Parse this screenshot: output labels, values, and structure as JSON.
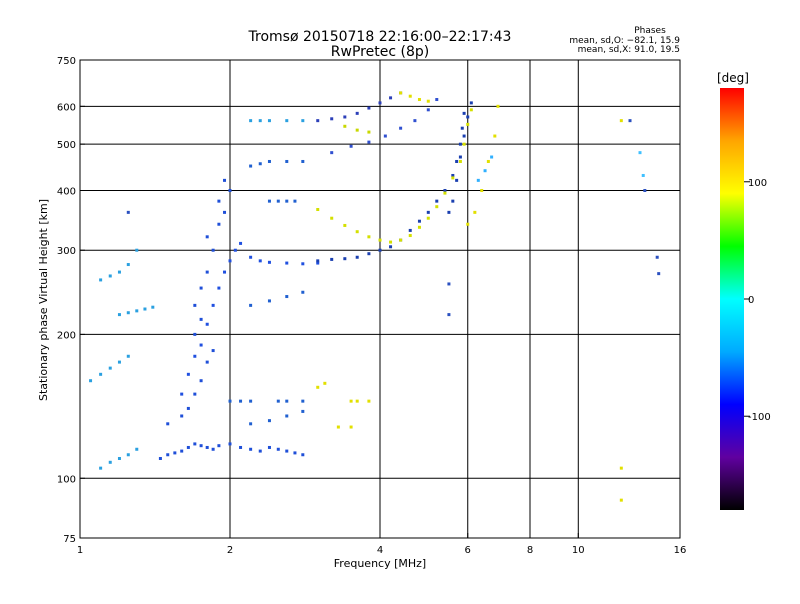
{
  "header": {
    "title_line1": "Tromsø 20150718 22:16:00–22:17:43",
    "title_line2": "RwPretec (8p)",
    "phases_title": "Phases",
    "phases_o": "mean, sd,O: −82.1, 15.9",
    "phases_x": "mean, sd,X:  91.0, 19.5"
  },
  "chart_data": {
    "type": "scatter",
    "xlabel": "Frequency [MHz]",
    "ylabel": "Stationary phase Virtual Height [km]",
    "x_scale": "log",
    "y_scale": "log",
    "xlim": [
      1,
      16
    ],
    "ylim": [
      75,
      750
    ],
    "x_ticks": [
      1,
      2,
      4,
      6,
      8,
      10,
      16
    ],
    "y_ticks": [
      75,
      100,
      200,
      300,
      400,
      500,
      600,
      750
    ],
    "grid_x": [
      2,
      4,
      6,
      8,
      10
    ],
    "grid_y": [
      100,
      200,
      300,
      400,
      500,
      600
    ],
    "colorbar": {
      "label": "[deg]",
      "range": [
        -180,
        180
      ],
      "ticks": [
        100,
        0,
        -100
      ],
      "colors": [
        "#ff0000",
        "#ffa500",
        "#ffff00",
        "#00ff00",
        "#00ffff",
        "#00aaff",
        "#0000ff",
        "#6000a0",
        "#000000"
      ]
    },
    "series": [
      {
        "color": "#1f4fd8",
        "points": [
          [
            1.45,
            110
          ],
          [
            1.5,
            112
          ],
          [
            1.55,
            113
          ],
          [
            1.6,
            114
          ],
          [
            1.65,
            116
          ],
          [
            1.7,
            118
          ],
          [
            1.75,
            117
          ],
          [
            1.8,
            116
          ],
          [
            1.85,
            115
          ],
          [
            1.9,
            117
          ],
          [
            2.0,
            118
          ],
          [
            2.1,
            116
          ],
          [
            2.2,
            115
          ],
          [
            2.3,
            114
          ],
          [
            2.4,
            116
          ],
          [
            2.5,
            115
          ],
          [
            2.6,
            114
          ],
          [
            2.7,
            113
          ],
          [
            2.8,
            112
          ]
        ]
      },
      {
        "color": "#1f4fd8",
        "points": [
          [
            1.5,
            130
          ],
          [
            1.6,
            135
          ],
          [
            1.65,
            140
          ],
          [
            1.7,
            150
          ],
          [
            1.75,
            160
          ],
          [
            1.8,
            175
          ],
          [
            1.85,
            185
          ],
          [
            1.7,
            200
          ],
          [
            1.75,
            215
          ],
          [
            1.7,
            230
          ],
          [
            1.75,
            250
          ],
          [
            1.8,
            270
          ],
          [
            1.85,
            300
          ],
          [
            1.8,
            320
          ],
          [
            1.9,
            340
          ],
          [
            1.95,
            360
          ],
          [
            1.9,
            380
          ],
          [
            2.0,
            400
          ],
          [
            1.95,
            420
          ]
        ]
      },
      {
        "color": "#2050e0",
        "points": [
          [
            1.6,
            150
          ],
          [
            1.65,
            165
          ],
          [
            1.7,
            180
          ],
          [
            1.75,
            190
          ],
          [
            1.8,
            210
          ],
          [
            1.85,
            230
          ],
          [
            1.9,
            250
          ],
          [
            1.95,
            270
          ],
          [
            2.0,
            285
          ],
          [
            2.05,
            300
          ],
          [
            2.1,
            310
          ],
          [
            2.2,
            290
          ],
          [
            2.3,
            285
          ],
          [
            2.4,
            283
          ],
          [
            2.6,
            282
          ],
          [
            2.8,
            281
          ],
          [
            3.0,
            282
          ]
        ]
      },
      {
        "color": "#1a3fb0",
        "points": [
          [
            3.0,
            285
          ],
          [
            3.2,
            287
          ],
          [
            3.4,
            288
          ],
          [
            3.6,
            290
          ],
          [
            3.8,
            295
          ],
          [
            4.0,
            300
          ],
          [
            4.2,
            305
          ],
          [
            4.4,
            315
          ],
          [
            4.6,
            330
          ],
          [
            4.8,
            345
          ],
          [
            5.0,
            360
          ],
          [
            5.2,
            380
          ],
          [
            5.4,
            400
          ],
          [
            5.6,
            430
          ],
          [
            5.7,
            460
          ],
          [
            5.8,
            500
          ],
          [
            5.85,
            540
          ],
          [
            5.9,
            580
          ]
        ]
      },
      {
        "color": "#2c3fb8",
        "points": [
          [
            3.0,
            560
          ],
          [
            3.2,
            565
          ],
          [
            3.4,
            570
          ],
          [
            3.6,
            580
          ],
          [
            3.8,
            595
          ],
          [
            4.0,
            610
          ],
          [
            4.2,
            625
          ],
          [
            4.4,
            640
          ]
        ]
      },
      {
        "color": "#3050d0",
        "points": [
          [
            3.2,
            480
          ],
          [
            3.5,
            495
          ],
          [
            3.8,
            505
          ],
          [
            4.1,
            520
          ],
          [
            4.4,
            540
          ],
          [
            4.7,
            560
          ],
          [
            5.0,
            590
          ],
          [
            5.2,
            620
          ]
        ]
      },
      {
        "color": "#d4e000",
        "points": [
          [
            3.0,
            365
          ],
          [
            3.2,
            350
          ],
          [
            3.4,
            338
          ],
          [
            3.6,
            328
          ],
          [
            3.8,
            320
          ],
          [
            4.0,
            315
          ],
          [
            4.2,
            312
          ],
          [
            4.4,
            315
          ],
          [
            4.6,
            322
          ],
          [
            4.8,
            335
          ],
          [
            5.0,
            350
          ],
          [
            5.2,
            370
          ],
          [
            5.4,
            395
          ],
          [
            5.6,
            425
          ],
          [
            5.8,
            460
          ],
          [
            5.9,
            500
          ],
          [
            6.0,
            550
          ],
          [
            6.1,
            590
          ]
        ]
      },
      {
        "color": "#c8d800",
        "points": [
          [
            3.4,
            545
          ],
          [
            3.6,
            535
          ],
          [
            3.8,
            530
          ]
        ]
      },
      {
        "color": "#e2e000",
        "points": [
          [
            4.4,
            640
          ],
          [
            4.6,
            630
          ],
          [
            4.8,
            620
          ],
          [
            5.0,
            615
          ]
        ]
      },
      {
        "color": "#2aa0e0",
        "points": [
          [
            1.1,
            105
          ],
          [
            1.15,
            108
          ],
          [
            1.2,
            110
          ],
          [
            1.25,
            112
          ],
          [
            1.3,
            115
          ]
        ]
      },
      {
        "color": "#2aa0e0",
        "points": [
          [
            1.05,
            160
          ],
          [
            1.1,
            165
          ],
          [
            1.15,
            170
          ],
          [
            1.2,
            175
          ],
          [
            1.25,
            180
          ]
        ]
      },
      {
        "color": "#2aa0e0",
        "points": [
          [
            1.1,
            260
          ],
          [
            1.15,
            265
          ],
          [
            1.2,
            270
          ],
          [
            1.25,
            280
          ],
          [
            1.3,
            300
          ]
        ]
      },
      {
        "color": "#2aa0e0",
        "points": [
          [
            1.2,
            220
          ],
          [
            1.25,
            222
          ],
          [
            1.3,
            224
          ],
          [
            1.35,
            226
          ],
          [
            1.4,
            228
          ]
        ]
      },
      {
        "color": "#2aa0e0",
        "points": [
          [
            2.2,
            560
          ],
          [
            2.3,
            560
          ],
          [
            2.4,
            560
          ],
          [
            2.6,
            560
          ],
          [
            2.8,
            560
          ]
        ]
      },
      {
        "color": "#2060d0",
        "points": [
          [
            2.2,
            450
          ],
          [
            2.3,
            455
          ],
          [
            2.4,
            460
          ],
          [
            2.6,
            460
          ],
          [
            2.8,
            460
          ]
        ]
      },
      {
        "color": "#2060d0",
        "points": [
          [
            2.4,
            380
          ],
          [
            2.5,
            380
          ],
          [
            2.6,
            380
          ],
          [
            2.7,
            380
          ]
        ]
      },
      {
        "color": "#2060d0",
        "points": [
          [
            2.0,
            145
          ],
          [
            2.1,
            145
          ],
          [
            2.2,
            145
          ],
          [
            2.5,
            145
          ],
          [
            2.6,
            145
          ],
          [
            2.8,
            145
          ]
        ]
      },
      {
        "color": "#2060d0",
        "points": [
          [
            2.2,
            130
          ],
          [
            2.4,
            132
          ],
          [
            2.6,
            135
          ],
          [
            2.8,
            138
          ]
        ]
      },
      {
        "color": "#2060d0",
        "points": [
          [
            2.2,
            230
          ],
          [
            2.4,
            235
          ],
          [
            2.6,
            240
          ],
          [
            2.8,
            245
          ]
        ]
      },
      {
        "color": "#e2e000",
        "points": [
          [
            3.0,
            155
          ],
          [
            3.1,
            158
          ]
        ]
      },
      {
        "color": "#e2e000",
        "points": [
          [
            3.5,
            145
          ],
          [
            3.6,
            145
          ],
          [
            3.8,
            145
          ]
        ]
      },
      {
        "color": "#e2e000",
        "points": [
          [
            3.3,
            128
          ],
          [
            3.5,
            128
          ]
        ]
      },
      {
        "color": "#e2e000",
        "points": [
          [
            6.0,
            340
          ],
          [
            6.2,
            360
          ],
          [
            6.4,
            400
          ],
          [
            6.6,
            460
          ],
          [
            6.8,
            520
          ],
          [
            6.9,
            600
          ]
        ]
      },
      {
        "color": "#30b0ff",
        "points": [
          [
            6.3,
            420
          ],
          [
            6.5,
            440
          ],
          [
            6.7,
            470
          ]
        ]
      },
      {
        "color": "#1a3fb0",
        "points": [
          [
            5.5,
            360
          ],
          [
            5.6,
            380
          ],
          [
            5.7,
            420
          ],
          [
            5.8,
            470
          ],
          [
            5.9,
            520
          ],
          [
            6.0,
            570
          ],
          [
            6.1,
            610
          ]
        ]
      },
      {
        "color": "#40c0ff",
        "points": [
          [
            13.3,
            480
          ],
          [
            13.5,
            430
          ]
        ]
      },
      {
        "color": "#2a50c0",
        "points": [
          [
            12.7,
            560
          ],
          [
            13.6,
            400
          ]
        ]
      },
      {
        "color": "#e2e000",
        "points": [
          [
            12.2,
            105
          ],
          [
            12.2,
            90
          ]
        ]
      },
      {
        "color": "#e2e000",
        "points": [
          [
            12.2,
            560
          ]
        ]
      },
      {
        "color": "#2a50c0",
        "points": [
          [
            1.25,
            360
          ],
          [
            5.5,
            255
          ],
          [
            5.5,
            220
          ],
          [
            14.5,
            268
          ],
          [
            14.4,
            290
          ]
        ]
      }
    ]
  }
}
